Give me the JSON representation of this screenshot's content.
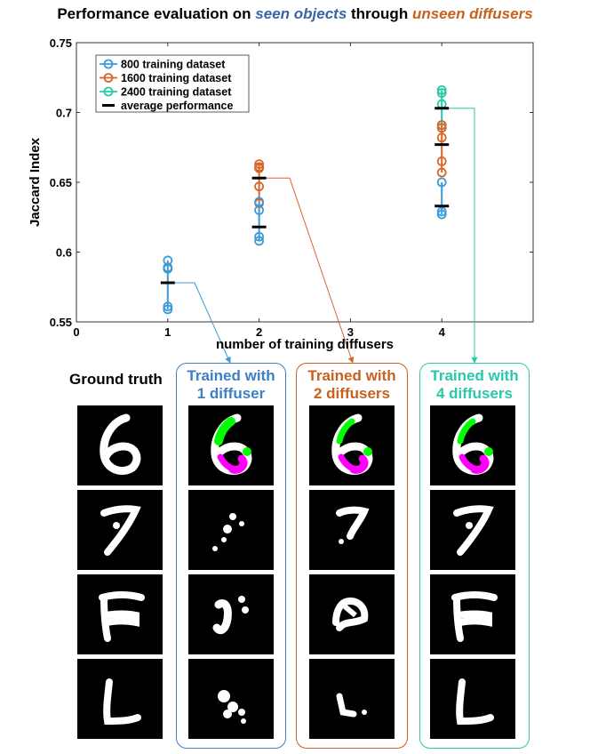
{
  "title": {
    "prefix": "Performance evaluation on ",
    "seen": "seen objects",
    "middle": " through ",
    "unseen": "unseen diffusers"
  },
  "colors": {
    "series_800": "#3d9ad6",
    "series_1600": "#d9652a",
    "series_2400": "#2ac7a8",
    "average": "#000000",
    "title_blue": "#3a64a8",
    "title_orange": "#c8601e",
    "overlay_green": "#00ff00",
    "overlay_magenta": "#ff00ff"
  },
  "chart_data": {
    "type": "scatter",
    "xlabel": "number of training diffusers",
    "ylabel": "Jaccard Index",
    "xlim": [
      0,
      5
    ],
    "ylim": [
      0.55,
      0.75
    ],
    "xticks": [
      "0",
      "1",
      "2",
      "3",
      "4"
    ],
    "yticks": [
      "0.55",
      "0.6",
      "0.65",
      "0.7",
      "0.75"
    ],
    "grid": false,
    "legend_position": "top-left",
    "series": [
      {
        "name": "800 training dataset",
        "points": [
          [
            1,
            0.594
          ],
          [
            1,
            0.589
          ],
          [
            1,
            0.588
          ],
          [
            1,
            0.561
          ],
          [
            1,
            0.559
          ],
          [
            2,
            0.636
          ],
          [
            2,
            0.63
          ],
          [
            2,
            0.611
          ],
          [
            2,
            0.608
          ],
          [
            4,
            0.65
          ],
          [
            4,
            0.629
          ],
          [
            4,
            0.627
          ]
        ]
      },
      {
        "name": "1600 training dataset",
        "points": [
          [
            2,
            0.663
          ],
          [
            2,
            0.661
          ],
          [
            2,
            0.66
          ],
          [
            2,
            0.647
          ],
          [
            2,
            0.635
          ],
          [
            4,
            0.691
          ],
          [
            4,
            0.689
          ],
          [
            4,
            0.682
          ],
          [
            4,
            0.665
          ],
          [
            4,
            0.657
          ]
        ]
      },
      {
        "name": "2400 training dataset",
        "points": [
          [
            4,
            0.716
          ],
          [
            4,
            0.714
          ],
          [
            4,
            0.706
          ],
          [
            4,
            0.691
          ],
          [
            4,
            0.689
          ]
        ]
      },
      {
        "name": "average performance",
        "points": [
          [
            1,
            0.578
          ],
          [
            2,
            0.618
          ],
          [
            2,
            0.653
          ],
          [
            4,
            0.633
          ],
          [
            4,
            0.677
          ],
          [
            4,
            0.703
          ]
        ]
      }
    ]
  },
  "labels": {
    "ground_truth": "Ground truth",
    "col1_line1": "Trained with",
    "col1_line2": "1 diffuser",
    "col2_line1": "Trained with",
    "col2_line2": "2 diffusers",
    "col4_line1": "Trained with",
    "col4_line2": "4 diffusers"
  },
  "digits": [
    "6",
    "7",
    "F",
    "L"
  ]
}
